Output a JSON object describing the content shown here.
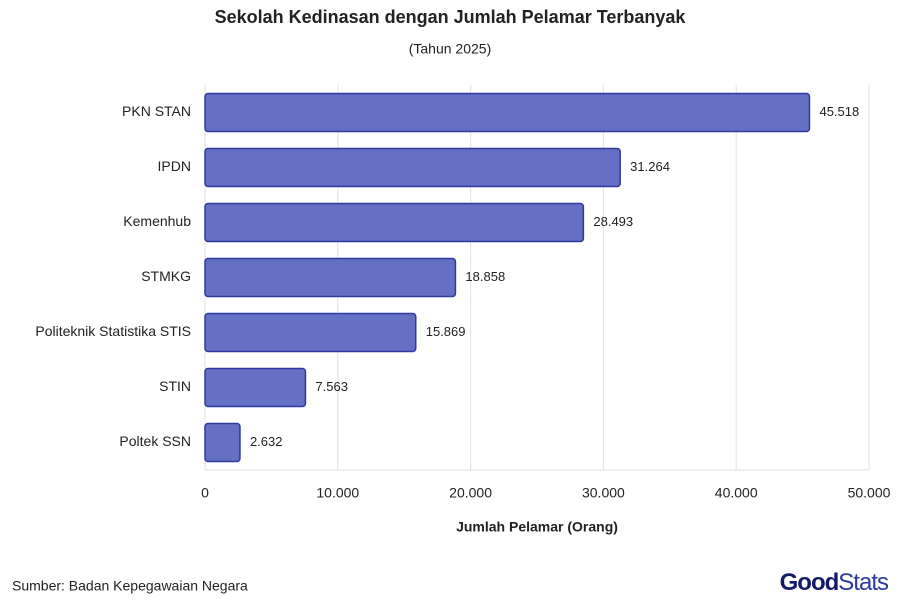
{
  "chart_data": {
    "type": "bar",
    "orientation": "horizontal",
    "title": "Sekolah Kedinasan dengan Jumlah Pelamar Terbanyak",
    "subtitle": "(Tahun 2025)",
    "x_label": "Jumlah Pelamar (Orang)",
    "categories": [
      "PKN STAN",
      "IPDN",
      "Kemenhub",
      "STMKG",
      "Politeknik Statistika STIS",
      "STIN",
      "Poltek SSN"
    ],
    "values": [
      45518,
      31264,
      28493,
      18858,
      15869,
      7563,
      2632
    ],
    "value_labels": [
      "45.518",
      "31.264",
      "28.493",
      "18.858",
      "15.869",
      "7.563",
      "2.632"
    ],
    "color": "#6570c4",
    "edge_color": "#2e3a9c",
    "xlim": [
      0,
      50000
    ],
    "xticks": [
      0,
      {
        "value": 10000,
        "label": "10.000"
      },
      {
        "value": 20000,
        "label": "20.000"
      },
      {
        "value": 30000,
        "label": "30.000"
      },
      {
        "value": 40000,
        "label": "40.000"
      },
      {
        "value": 50000,
        "label": "50.000"
      }
    ],
    "grid": true
  },
  "footer": {
    "source": "Sumber: Badan Kepegawaian Negara",
    "logo": [
      "Good",
      "Stats"
    ]
  }
}
